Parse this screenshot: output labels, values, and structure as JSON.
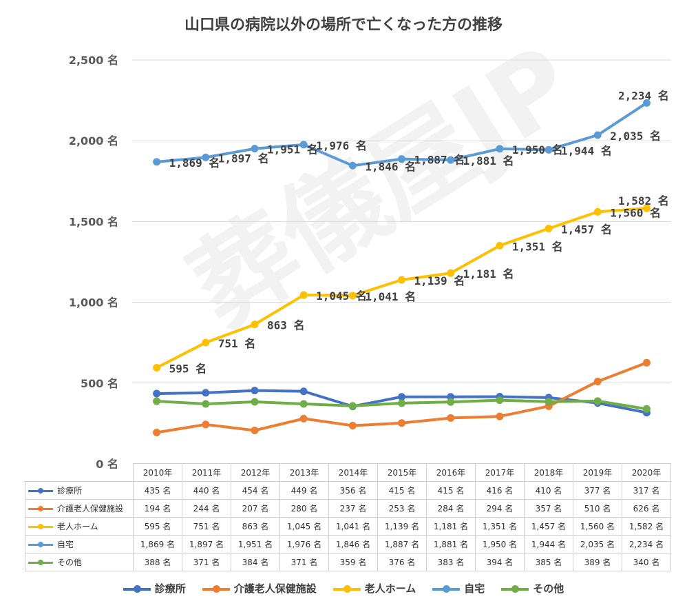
{
  "title": "山口県の病院以外の場所で亡くなった方の推移",
  "watermark": "葬儀屋JP",
  "chart_data": {
    "type": "line",
    "title": "山口県の病院以外の場所で亡くなった方の推移",
    "unit": "名",
    "categories": [
      "2010年",
      "2011年",
      "2012年",
      "2013年",
      "2014年",
      "2015年",
      "2016年",
      "2017年",
      "2018年",
      "2019年",
      "2020年"
    ],
    "ylim": [
      0,
      2500
    ],
    "yticks": [
      "0 名",
      "500 名",
      "1,000 名",
      "1,500 名",
      "2,000 名",
      "2,500 名"
    ],
    "grid": true,
    "legend": "bottom",
    "series": [
      {
        "name": "診療所",
        "color": "#4472C4",
        "values": [
          435,
          440,
          454,
          449,
          356,
          415,
          415,
          416,
          410,
          377,
          317
        ],
        "labels": [
          "435 名",
          "440 名",
          "454 名",
          "449 名",
          "356 名",
          "415 名",
          "415 名",
          "416 名",
          "410 名",
          "377 名",
          "317 名"
        ],
        "show_labels": false
      },
      {
        "name": "介護老人保健施設",
        "color": "#ED7D31",
        "values": [
          194,
          244,
          207,
          280,
          237,
          253,
          284,
          294,
          357,
          510,
          626
        ],
        "labels": [
          "194 名",
          "244 名",
          "207 名",
          "280 名",
          "237 名",
          "253 名",
          "284 名",
          "294 名",
          "357 名",
          "510 名",
          "626 名"
        ],
        "show_labels": false
      },
      {
        "name": "老人ホーム",
        "color": "#FFC000",
        "values": [
          595,
          751,
          863,
          1045,
          1041,
          1139,
          1181,
          1351,
          1457,
          1560,
          1582
        ],
        "labels": [
          "595 名",
          "751 名",
          "863 名",
          "1,045 名",
          "1,041 名",
          "1,139 名",
          "1,181 名",
          "1,351 名",
          "1,457 名",
          "1,560 名",
          "1,582 名"
        ],
        "show_labels": true
      },
      {
        "name": "自宅",
        "color": "#5B9BD5",
        "values": [
          1869,
          1897,
          1951,
          1976,
          1846,
          1887,
          1881,
          1950,
          1944,
          2035,
          2234
        ],
        "labels": [
          "1,869 名",
          "1,897 名",
          "1,951 名",
          "1,976 名",
          "1,846 名",
          "1,887 名",
          "1,881 名",
          "1,950 名",
          "1,944 名",
          "2,035 名",
          "2,234 名"
        ],
        "show_labels": true
      },
      {
        "name": "その他",
        "color": "#70AD47",
        "values": [
          388,
          371,
          384,
          371,
          359,
          376,
          383,
          394,
          385,
          389,
          340
        ],
        "labels": [
          "388 名",
          "371 名",
          "384 名",
          "371 名",
          "359 名",
          "376 名",
          "383 名",
          "394 名",
          "385 名",
          "389 名",
          "340 名"
        ],
        "show_labels": false
      }
    ]
  }
}
